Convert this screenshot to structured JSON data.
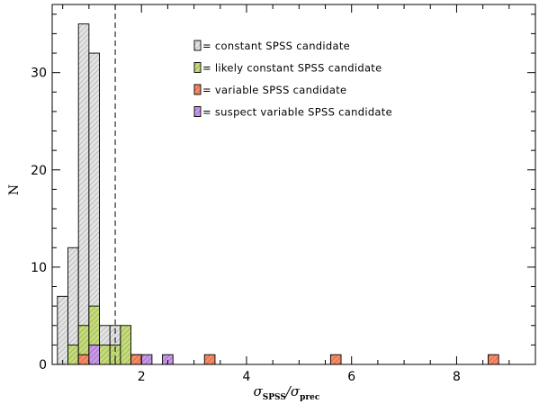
{
  "chart_data": {
    "type": "histogram",
    "xlabel": {
      "main": "σ",
      "sub1": "SPSS",
      "sep": "/σ",
      "sub2": "prec"
    },
    "ylabel": "N",
    "xlim": [
      0.3,
      9.5
    ],
    "ylim": [
      0,
      37
    ],
    "x_ticks": [
      2,
      4,
      6,
      8
    ],
    "y_ticks": [
      0,
      10,
      20,
      30
    ],
    "bin_width": 0.2,
    "threshold_line": 1.5,
    "series": [
      {
        "name": "constant SPSS candidate",
        "color": "#e3e3e3",
        "hatch": "#8a8a8a",
        "bins": [
          {
            "x": 0.4,
            "n": 7
          },
          {
            "x": 0.6,
            "n": 12
          },
          {
            "x": 0.8,
            "n": 35
          },
          {
            "x": 1.0,
            "n": 32
          },
          {
            "x": 1.2,
            "n": 4
          },
          {
            "x": 1.4,
            "n": 4
          },
          {
            "x": 1.6,
            "n": 3
          }
        ]
      },
      {
        "name": "likely constant SPSS candidate",
        "color": "#c6dc7c",
        "hatch": "#6b8a2c",
        "bins": [
          {
            "x": 0.6,
            "n": 2
          },
          {
            "x": 0.8,
            "n": 4
          },
          {
            "x": 1.0,
            "n": 6
          },
          {
            "x": 1.2,
            "n": 2
          },
          {
            "x": 1.4,
            "n": 2
          },
          {
            "x": 1.6,
            "n": 4
          },
          {
            "x": 1.8,
            "n": 1
          }
        ]
      },
      {
        "name": "variable SPSS candidate",
        "color": "#f58c6a",
        "hatch": "#c0381a",
        "bins": [
          {
            "x": 0.8,
            "n": 1
          },
          {
            "x": 1.8,
            "n": 1
          },
          {
            "x": 3.2,
            "n": 1
          },
          {
            "x": 5.6,
            "n": 1
          },
          {
            "x": 8.6,
            "n": 1
          }
        ]
      },
      {
        "name": "suspect variable SPSS candidate",
        "color": "#c79be6",
        "hatch": "#6e36a6",
        "bins": [
          {
            "x": 1.0,
            "n": 2
          },
          {
            "x": 2.0,
            "n": 1
          },
          {
            "x": 2.4,
            "n": 1
          }
        ]
      }
    ],
    "legend_prefix": "= ",
    "legend_position": "top-right"
  }
}
